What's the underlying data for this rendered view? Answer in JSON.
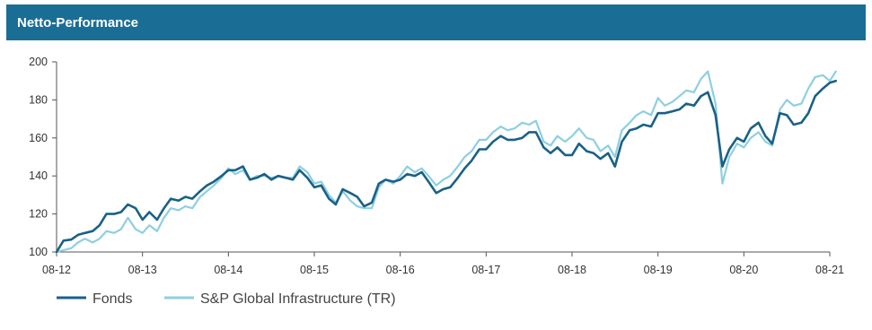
{
  "header": {
    "title": "Netto-Performance"
  },
  "chart_data": {
    "type": "line",
    "title": "Netto-Performance",
    "xlabel": "",
    "ylabel": "",
    "ylim": [
      100,
      200
    ],
    "yticks": [
      100,
      120,
      140,
      160,
      180,
      200
    ],
    "xlim": [
      2012.58,
      2021.58
    ],
    "xticks": [
      {
        "label": "08-12",
        "x": 2012.58
      },
      {
        "label": "08-13",
        "x": 2013.58
      },
      {
        "label": "08-14",
        "x": 2014.58
      },
      {
        "label": "08-15",
        "x": 2015.58
      },
      {
        "label": "08-16",
        "x": 2016.58
      },
      {
        "label": "08-17",
        "x": 2017.58
      },
      {
        "label": "08-18",
        "x": 2018.58
      },
      {
        "label": "08-19",
        "x": 2019.58
      },
      {
        "label": "08-20",
        "x": 2020.58
      },
      {
        "label": "08-21",
        "x": 2021.58
      }
    ],
    "grid": false,
    "legend": "bottom-left",
    "series": [
      {
        "name": "Fonds",
        "color": "#1a6186",
        "points": [
          [
            2012.58,
            100
          ],
          [
            2012.66,
            106
          ],
          [
            2012.75,
            106.5
          ],
          [
            2012.83,
            109
          ],
          [
            2012.91,
            110
          ],
          [
            2013.0,
            111
          ],
          [
            2013.08,
            114
          ],
          [
            2013.16,
            120
          ],
          [
            2013.25,
            120
          ],
          [
            2013.33,
            121
          ],
          [
            2013.41,
            125
          ],
          [
            2013.5,
            123
          ],
          [
            2013.58,
            117
          ],
          [
            2013.66,
            121
          ],
          [
            2013.75,
            117
          ],
          [
            2013.83,
            123
          ],
          [
            2013.91,
            128
          ],
          [
            2014.0,
            127
          ],
          [
            2014.08,
            129
          ],
          [
            2014.16,
            128
          ],
          [
            2014.25,
            132
          ],
          [
            2014.33,
            135
          ],
          [
            2014.41,
            137
          ],
          [
            2014.5,
            140
          ],
          [
            2014.58,
            143
          ],
          [
            2014.66,
            143
          ],
          [
            2014.75,
            145
          ],
          [
            2014.83,
            138
          ],
          [
            2014.91,
            139
          ],
          [
            2015.0,
            141
          ],
          [
            2015.08,
            138
          ],
          [
            2015.16,
            140
          ],
          [
            2015.25,
            139
          ],
          [
            2015.33,
            138
          ],
          [
            2015.41,
            143
          ],
          [
            2015.5,
            139
          ],
          [
            2015.58,
            134
          ],
          [
            2015.66,
            135
          ],
          [
            2015.75,
            128
          ],
          [
            2015.83,
            125
          ],
          [
            2015.91,
            133
          ],
          [
            2016.0,
            131
          ],
          [
            2016.08,
            129
          ],
          [
            2016.16,
            124
          ],
          [
            2016.25,
            126
          ],
          [
            2016.33,
            136
          ],
          [
            2016.41,
            138
          ],
          [
            2016.5,
            137
          ],
          [
            2016.58,
            138
          ],
          [
            2016.66,
            141
          ],
          [
            2016.75,
            140
          ],
          [
            2016.83,
            142
          ],
          [
            2016.91,
            137
          ],
          [
            2017.0,
            131
          ],
          [
            2017.08,
            133
          ],
          [
            2017.16,
            134
          ],
          [
            2017.25,
            139
          ],
          [
            2017.33,
            144
          ],
          [
            2017.41,
            148
          ],
          [
            2017.5,
            154
          ],
          [
            2017.58,
            154
          ],
          [
            2017.66,
            158
          ],
          [
            2017.75,
            161
          ],
          [
            2017.83,
            159
          ],
          [
            2017.91,
            159
          ],
          [
            2018.0,
            160
          ],
          [
            2018.08,
            163
          ],
          [
            2018.16,
            163
          ],
          [
            2018.25,
            155
          ],
          [
            2018.33,
            152
          ],
          [
            2018.41,
            155
          ],
          [
            2018.5,
            151
          ],
          [
            2018.58,
            151
          ],
          [
            2018.66,
            157
          ],
          [
            2018.75,
            153
          ],
          [
            2018.83,
            152
          ],
          [
            2018.91,
            149
          ],
          [
            2019.0,
            152
          ],
          [
            2019.08,
            145
          ],
          [
            2019.16,
            158
          ],
          [
            2019.25,
            164
          ],
          [
            2019.33,
            165
          ],
          [
            2019.41,
            167
          ],
          [
            2019.5,
            166
          ],
          [
            2019.58,
            173
          ],
          [
            2019.66,
            173
          ],
          [
            2019.75,
            174
          ],
          [
            2019.83,
            175
          ],
          [
            2019.91,
            178
          ],
          [
            2020.0,
            177
          ],
          [
            2020.08,
            182
          ],
          [
            2020.16,
            184
          ],
          [
            2020.25,
            172
          ],
          [
            2020.33,
            145
          ],
          [
            2020.41,
            154
          ],
          [
            2020.5,
            160
          ],
          [
            2020.58,
            158
          ],
          [
            2020.66,
            165
          ],
          [
            2020.75,
            168
          ],
          [
            2020.83,
            161
          ],
          [
            2020.91,
            157
          ],
          [
            2021.0,
            173
          ],
          [
            2021.08,
            172
          ],
          [
            2021.16,
            167
          ],
          [
            2021.25,
            168
          ],
          [
            2021.33,
            173
          ],
          [
            2021.41,
            182
          ],
          [
            2021.5,
            186
          ],
          [
            2021.58,
            189
          ],
          [
            2021.65,
            190
          ]
        ]
      },
      {
        "name": "S&P Global Infrastructure (TR)",
        "color": "#8ecfe0",
        "points": [
          [
            2012.58,
            100
          ],
          [
            2012.66,
            101
          ],
          [
            2012.75,
            102
          ],
          [
            2012.83,
            105
          ],
          [
            2012.91,
            107
          ],
          [
            2013.0,
            105
          ],
          [
            2013.08,
            107
          ],
          [
            2013.16,
            111
          ],
          [
            2013.25,
            110
          ],
          [
            2013.33,
            112
          ],
          [
            2013.41,
            118
          ],
          [
            2013.5,
            112
          ],
          [
            2013.58,
            110
          ],
          [
            2013.66,
            114
          ],
          [
            2013.75,
            111
          ],
          [
            2013.83,
            118
          ],
          [
            2013.91,
            123
          ],
          [
            2014.0,
            122
          ],
          [
            2014.08,
            124
          ],
          [
            2014.16,
            123
          ],
          [
            2014.25,
            129
          ],
          [
            2014.33,
            132
          ],
          [
            2014.41,
            135
          ],
          [
            2014.5,
            139
          ],
          [
            2014.58,
            144
          ],
          [
            2014.66,
            141
          ],
          [
            2014.75,
            143
          ],
          [
            2014.83,
            138
          ],
          [
            2014.91,
            140
          ],
          [
            2015.0,
            140
          ],
          [
            2015.08,
            139
          ],
          [
            2015.16,
            140
          ],
          [
            2015.25,
            139
          ],
          [
            2015.33,
            139
          ],
          [
            2015.41,
            145
          ],
          [
            2015.5,
            142
          ],
          [
            2015.58,
            136
          ],
          [
            2015.66,
            137
          ],
          [
            2015.75,
            130
          ],
          [
            2015.83,
            126
          ],
          [
            2015.91,
            132
          ],
          [
            2016.0,
            127
          ],
          [
            2016.08,
            124
          ],
          [
            2016.16,
            123
          ],
          [
            2016.25,
            123
          ],
          [
            2016.33,
            134
          ],
          [
            2016.41,
            138
          ],
          [
            2016.5,
            136
          ],
          [
            2016.58,
            140
          ],
          [
            2016.66,
            145
          ],
          [
            2016.75,
            142
          ],
          [
            2016.83,
            144
          ],
          [
            2016.91,
            140
          ],
          [
            2017.0,
            135
          ],
          [
            2017.08,
            138
          ],
          [
            2017.16,
            140
          ],
          [
            2017.25,
            145
          ],
          [
            2017.33,
            150
          ],
          [
            2017.41,
            153
          ],
          [
            2017.5,
            159
          ],
          [
            2017.58,
            159
          ],
          [
            2017.66,
            163
          ],
          [
            2017.75,
            166
          ],
          [
            2017.83,
            164
          ],
          [
            2017.91,
            165
          ],
          [
            2018.0,
            168
          ],
          [
            2018.08,
            167
          ],
          [
            2018.16,
            169
          ],
          [
            2018.25,
            158
          ],
          [
            2018.33,
            156
          ],
          [
            2018.41,
            161
          ],
          [
            2018.5,
            158
          ],
          [
            2018.58,
            161
          ],
          [
            2018.66,
            165
          ],
          [
            2018.75,
            160
          ],
          [
            2018.83,
            159
          ],
          [
            2018.91,
            153
          ],
          [
            2019.0,
            156
          ],
          [
            2019.08,
            150
          ],
          [
            2019.16,
            164
          ],
          [
            2019.25,
            168
          ],
          [
            2019.33,
            172
          ],
          [
            2019.41,
            174
          ],
          [
            2019.5,
            172
          ],
          [
            2019.58,
            181
          ],
          [
            2019.66,
            177
          ],
          [
            2019.75,
            179
          ],
          [
            2019.83,
            182
          ],
          [
            2019.91,
            185
          ],
          [
            2020.0,
            184
          ],
          [
            2020.08,
            191
          ],
          [
            2020.16,
            195
          ],
          [
            2020.25,
            178
          ],
          [
            2020.33,
            136
          ],
          [
            2020.41,
            150
          ],
          [
            2020.5,
            157
          ],
          [
            2020.58,
            155
          ],
          [
            2020.66,
            160
          ],
          [
            2020.75,
            163
          ],
          [
            2020.83,
            158
          ],
          [
            2020.91,
            156
          ],
          [
            2021.0,
            175
          ],
          [
            2021.08,
            180
          ],
          [
            2021.16,
            177
          ],
          [
            2021.25,
            178
          ],
          [
            2021.33,
            186
          ],
          [
            2021.41,
            192
          ],
          [
            2021.5,
            193
          ],
          [
            2021.58,
            190
          ],
          [
            2021.65,
            195
          ]
        ]
      }
    ]
  }
}
